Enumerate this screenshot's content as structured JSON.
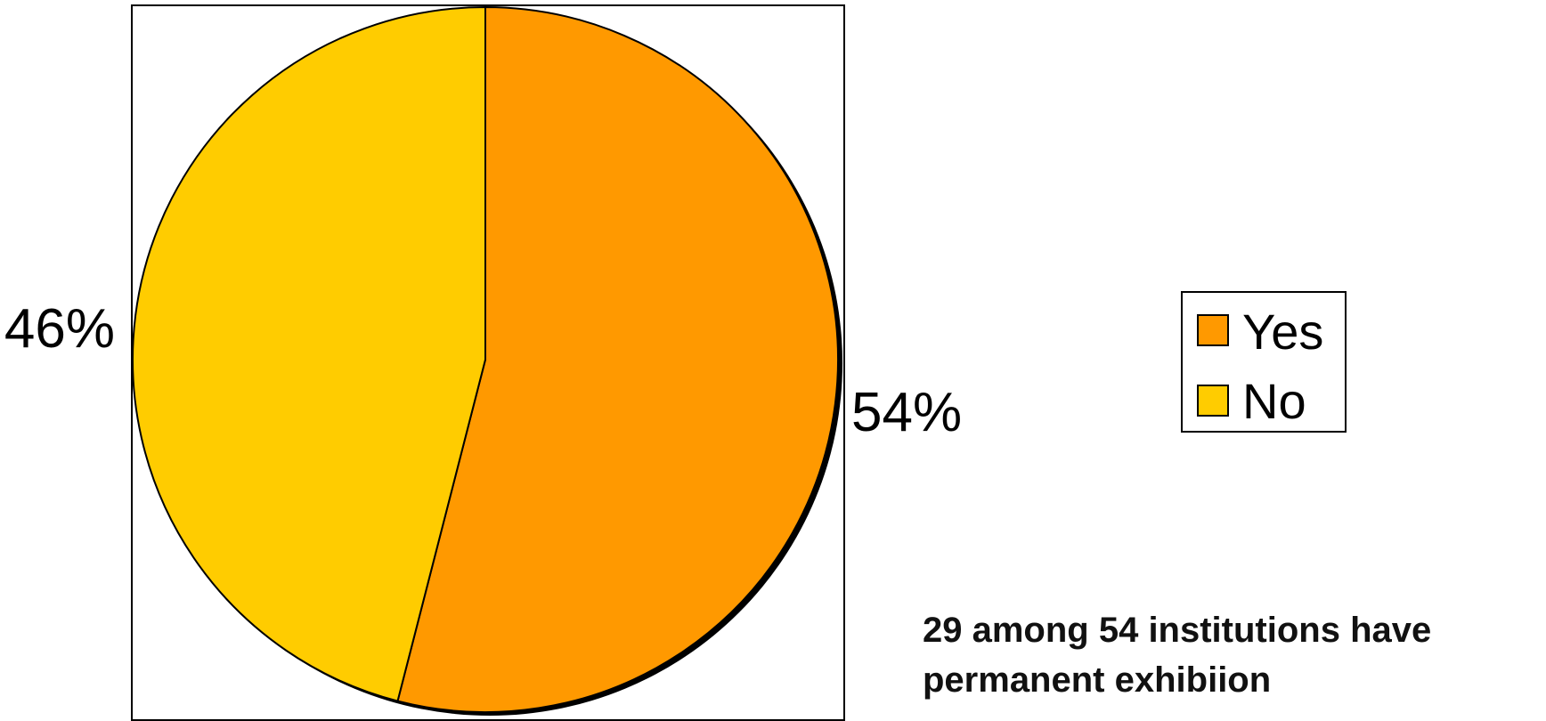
{
  "chart_data": {
    "type": "pie",
    "slices": [
      {
        "label": "Yes",
        "value": 54,
        "display": "54%",
        "color": "#FF9900"
      },
      {
        "label": "No",
        "value": 46,
        "display": "46%",
        "color": "#FFCC00"
      }
    ],
    "legend": {
      "items": [
        "Yes",
        "No"
      ],
      "placement": "right"
    },
    "annotation": "29 among 54 institutions have permanent exhibiion"
  }
}
